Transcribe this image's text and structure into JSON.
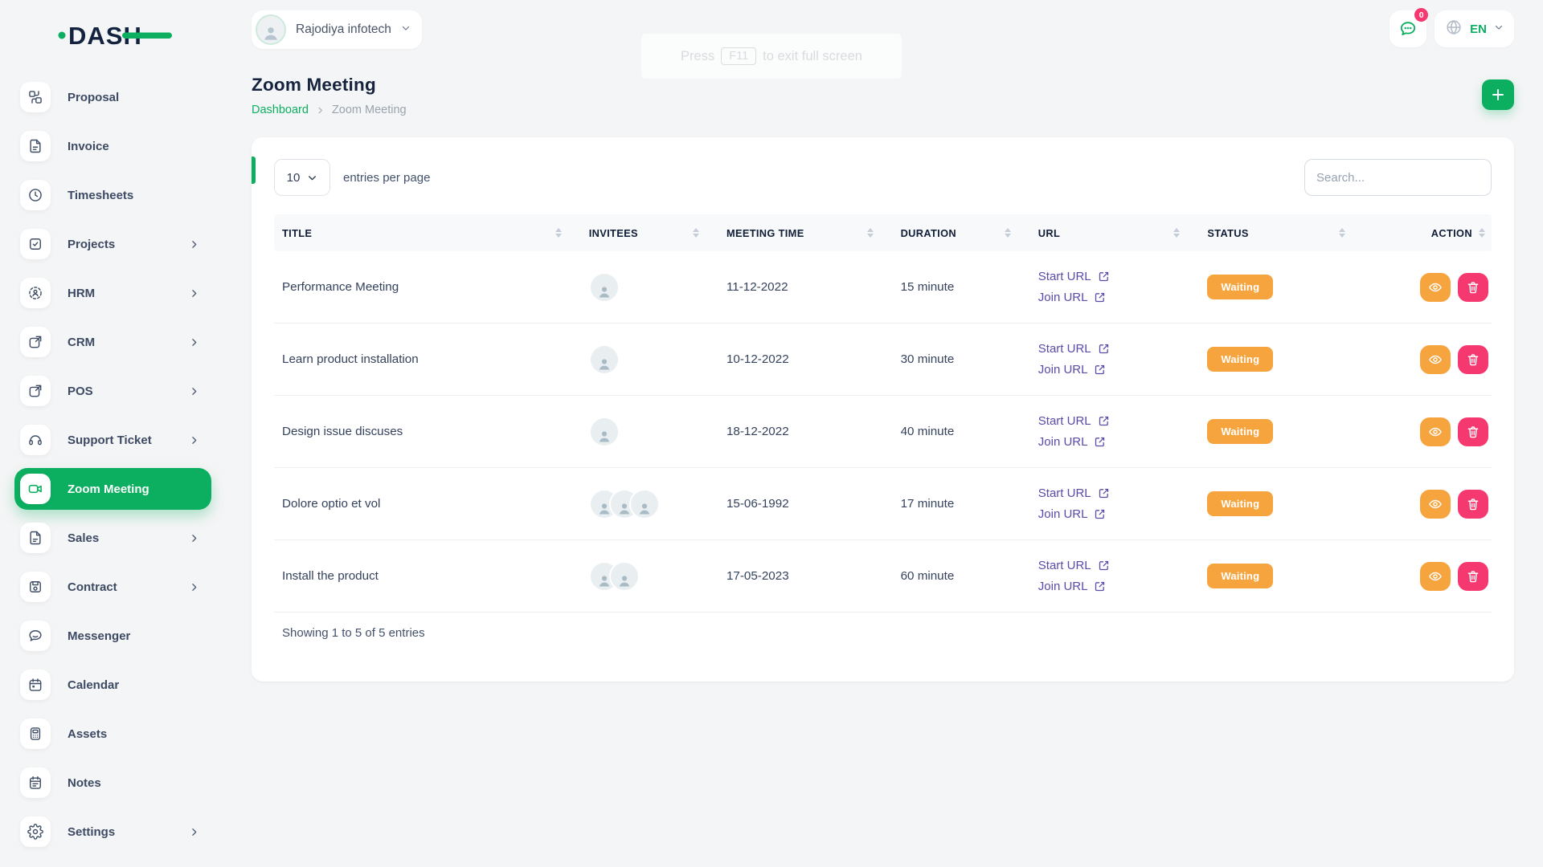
{
  "brand": {
    "name": "DASH"
  },
  "header": {
    "company_name": "Rajodiya infotech",
    "messages_badge": "0",
    "language": "EN",
    "fullscreen_hint_prefix": "Press",
    "fullscreen_hint_key": "F11",
    "fullscreen_hint_suffix": "to exit full screen"
  },
  "page": {
    "title": "Zoom Meeting",
    "breadcrumb_home": "Dashboard",
    "breadcrumb_current": "Zoom Meeting"
  },
  "icons": {
    "header": [
      "chat-bubble-icon",
      "globe-icon",
      "chevron-down-icon"
    ],
    "actions": [
      "plus-icon",
      "eye-icon",
      "trash-icon",
      "external-link-icon"
    ]
  },
  "sidebar": {
    "items": [
      {
        "label": "Proposal",
        "icon": "proposal-icon",
        "expandable": false,
        "active": false
      },
      {
        "label": "Invoice",
        "icon": "invoice-icon",
        "expandable": false,
        "active": false
      },
      {
        "label": "Timesheets",
        "icon": "timesheet-icon",
        "expandable": false,
        "active": false
      },
      {
        "label": "Projects",
        "icon": "projects-icon",
        "expandable": true,
        "active": false
      },
      {
        "label": "HRM",
        "icon": "hrm-icon",
        "expandable": true,
        "active": false
      },
      {
        "label": "CRM",
        "icon": "crm-icon",
        "expandable": true,
        "active": false
      },
      {
        "label": "POS",
        "icon": "pos-icon",
        "expandable": true,
        "active": false
      },
      {
        "label": "Support Ticket",
        "icon": "support-ticket-icon",
        "expandable": true,
        "active": false
      },
      {
        "label": "Zoom Meeting",
        "icon": "zoom-meeting-icon",
        "expandable": false,
        "active": true
      },
      {
        "label": "Sales",
        "icon": "sales-icon",
        "expandable": true,
        "active": false
      },
      {
        "label": "Contract",
        "icon": "contract-icon",
        "expandable": true,
        "active": false
      },
      {
        "label": "Messenger",
        "icon": "messenger-icon",
        "expandable": false,
        "active": false
      },
      {
        "label": "Calendar",
        "icon": "calendar-icon",
        "expandable": false,
        "active": false
      },
      {
        "label": "Assets",
        "icon": "assets-icon",
        "expandable": false,
        "active": false
      },
      {
        "label": "Notes",
        "icon": "notes-icon",
        "expandable": false,
        "active": false
      },
      {
        "label": "Settings",
        "icon": "settings-icon",
        "expandable": true,
        "active": false
      }
    ]
  },
  "toolbar": {
    "entries_per_page_value": "10",
    "entries_per_page_label": "entries per page",
    "search_placeholder": "Search..."
  },
  "meetings_table": {
    "columns": [
      {
        "label": "Title",
        "sortable": true
      },
      {
        "label": "Invitees",
        "sortable": true
      },
      {
        "label": "Meeting Time",
        "sortable": true
      },
      {
        "label": "Duration",
        "sortable": true
      },
      {
        "label": "URL",
        "sortable": true
      },
      {
        "label": "Status",
        "sortable": true
      },
      {
        "label": "Action",
        "sortable": true
      }
    ],
    "rows": [
      {
        "title": "Performance Meeting",
        "invitee_count": 1,
        "meeting_time": "11-12-2022",
        "duration": "15 minute",
        "start_url_label": "Start URL",
        "join_url_label": "Join URL",
        "status": "Waiting"
      },
      {
        "title": "Learn product installation",
        "invitee_count": 1,
        "meeting_time": "10-12-2022",
        "duration": "30 minute",
        "start_url_label": "Start URL",
        "join_url_label": "Join URL",
        "status": "Waiting"
      },
      {
        "title": "Design issue discuses",
        "invitee_count": 1,
        "meeting_time": "18-12-2022",
        "duration": "40 minute",
        "start_url_label": "Start URL",
        "join_url_label": "Join URL",
        "status": "Waiting"
      },
      {
        "title": "Dolore optio et vol",
        "invitee_count": 3,
        "meeting_time": "15-06-1992",
        "duration": "17 minute",
        "start_url_label": "Start URL",
        "join_url_label": "Join URL",
        "status": "Waiting"
      },
      {
        "title": "Install the product",
        "invitee_count": 2,
        "meeting_time": "17-05-2023",
        "duration": "60 minute",
        "start_url_label": "Start URL",
        "join_url_label": "Join URL",
        "status": "Waiting"
      }
    ],
    "footer_text": "Showing 1 to 5 of 5 entries"
  },
  "colors": {
    "primary_green": "#0CAF60",
    "link_purple": "#5b4aa9",
    "status_orange": "#f6a43e",
    "danger_pink": "#f5386f"
  }
}
